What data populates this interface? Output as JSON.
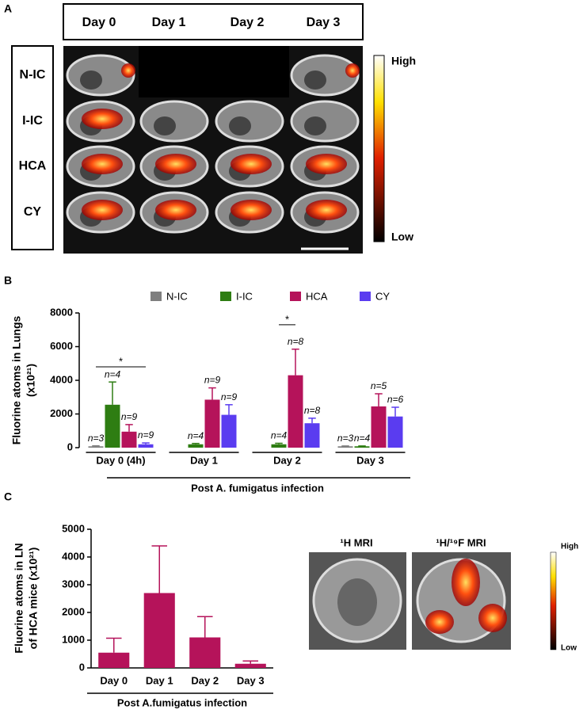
{
  "panel_a": {
    "label": "A",
    "days": [
      "Day 0",
      "Day 1",
      "Day 2",
      "Day 3"
    ],
    "rows": [
      "N-IC",
      "I-IC",
      "HCA",
      "CY"
    ],
    "colorbar_high": "High",
    "colorbar_low": "Low"
  },
  "chart_data": [
    {
      "type": "bar",
      "panel_label": "B",
      "y_label": [
        "Fluorine atoms in Lungs",
        "(x10²¹)"
      ],
      "x_title": "Post A. fumigatus infection",
      "categories": [
        "Day 0 (4h)",
        "Day 1",
        "Day 2",
        "Day 3"
      ],
      "series": [
        {
          "name": "N-IC",
          "color": "#7f7f7f",
          "values": [
            80,
            null,
            null,
            80
          ],
          "errors": [
            30,
            null,
            null,
            20
          ],
          "n_labels": [
            "n=3",
            null,
            null,
            "n=3"
          ]
        },
        {
          "name": "I-IC",
          "color": "#2e7d12",
          "values": [
            2550,
            200,
            200,
            80
          ],
          "errors": [
            1350,
            50,
            60,
            20
          ],
          "n_labels": [
            "n=4",
            "n=4",
            "n=4",
            "n=4"
          ]
        },
        {
          "name": "HCA",
          "color": "#b5135a",
          "values": [
            950,
            2850,
            4300,
            2450
          ],
          "errors": [
            420,
            700,
            1550,
            750
          ],
          "n_labels": [
            "n=9",
            "n=9",
            "n=8",
            "n=5"
          ]
        },
        {
          "name": "CY",
          "color": "#5a3cf0",
          "values": [
            200,
            1950,
            1450,
            1850
          ],
          "errors": [
            80,
            600,
            300,
            550
          ],
          "n_labels": [
            "n=9",
            "n=9",
            "n=8",
            "n=6"
          ]
        }
      ],
      "annotations": [
        "*",
        "*"
      ],
      "ylim": [
        0,
        8000
      ],
      "yticks": [
        0,
        2000,
        4000,
        6000,
        8000
      ]
    },
    {
      "type": "bar",
      "panel_label": "C",
      "y_label": [
        "Fluorine atoms in LN",
        "of HCA mice (x10²¹)"
      ],
      "x_title": "Post A.fumigatus infection",
      "categories": [
        "Day 0",
        "Day 1",
        "Day 2",
        "Day 3"
      ],
      "color": "#b5135a",
      "values": [
        550,
        2700,
        1100,
        150
      ],
      "errors": [
        520,
        1700,
        750,
        100
      ],
      "ylim": [
        0,
        5000
      ],
      "yticks": [
        0,
        1000,
        2000,
        3000,
        4000,
        5000
      ]
    }
  ],
  "panel_c_images": {
    "titles": [
      "¹H MRI",
      "¹H/¹⁹F MRI"
    ],
    "colorbar_high": "High",
    "colorbar_low": "Low"
  }
}
